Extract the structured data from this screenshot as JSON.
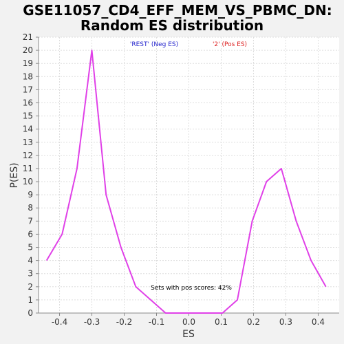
{
  "chart_data": {
    "type": "line",
    "title_lines": [
      "GSE11057_CD4_EFF_MEM_VS_PBMC_DN:",
      "Random ES distribution"
    ],
    "xlabel": "ES",
    "ylabel": "P(ES)",
    "xlim": [
      -0.465,
      0.465
    ],
    "ylim": [
      0,
      21
    ],
    "x_ticks": [
      -0.4,
      -0.3,
      -0.2,
      -0.1,
      0.0,
      0.1,
      0.2,
      0.3,
      0.4
    ],
    "x_tick_labels": [
      "-0.4",
      "-0.3",
      "-0.2",
      "-0.1",
      "0.0",
      "0.1",
      "0.2",
      "0.3",
      "0.4"
    ],
    "y_ticks": [
      0,
      1,
      2,
      3,
      4,
      5,
      6,
      7,
      8,
      9,
      10,
      11,
      12,
      13,
      14,
      15,
      16,
      17,
      18,
      19,
      20,
      21
    ],
    "y_tick_labels": [
      "0",
      "1",
      "2",
      "3",
      "4",
      "5",
      "6",
      "7",
      "8",
      "9",
      "10",
      "11",
      "12",
      "13",
      "14",
      "15",
      "16",
      "17",
      "18",
      "19",
      "20",
      "21"
    ],
    "grid": true,
    "legend": [
      {
        "label": "'REST' (Neg ES)",
        "color": "#2222cc"
      },
      {
        "label": "'2' (Pos ES)",
        "color": "#dd2222"
      }
    ],
    "series": [
      {
        "color": "#e040e8",
        "x": [
          -0.44,
          -0.392,
          -0.346,
          -0.3,
          -0.256,
          -0.21,
          -0.164,
          -0.118,
          -0.072,
          -0.026,
          0.02,
          0.066,
          0.104,
          0.15,
          0.196,
          0.24,
          0.286,
          0.332,
          0.378,
          0.424
        ],
        "y": [
          4,
          6,
          11,
          20,
          9,
          5,
          2,
          1,
          0,
          0,
          0,
          0,
          0,
          1,
          7,
          10,
          11,
          7,
          4,
          2
        ]
      }
    ],
    "annotation": "Sets with pos scores: 42%"
  }
}
